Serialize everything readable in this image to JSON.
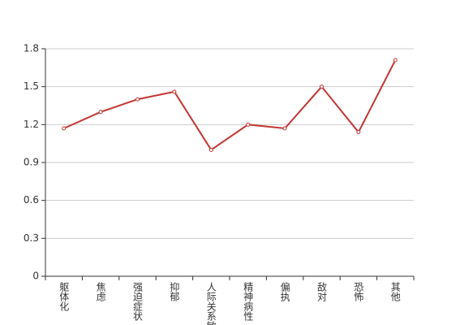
{
  "chart_data": {
    "type": "line",
    "categories": [
      "躯体化",
      "焦虑",
      "强迫症状",
      "抑郁",
      "人际关系敏感",
      "精神病性",
      "偏执",
      "敌对",
      "恐怖",
      "其他"
    ],
    "series": [
      {
        "color": "#c23531",
        "values": [
          1.17,
          1.3,
          1.4,
          1.46,
          1.0,
          1.2,
          1.17,
          1.5,
          1.14,
          1.71
        ]
      }
    ],
    "ylim": [
      0,
      1.8
    ],
    "yticks": [
      0,
      0.3,
      0.6,
      0.9,
      1.2,
      1.5,
      1.8
    ],
    "grid": true
  }
}
